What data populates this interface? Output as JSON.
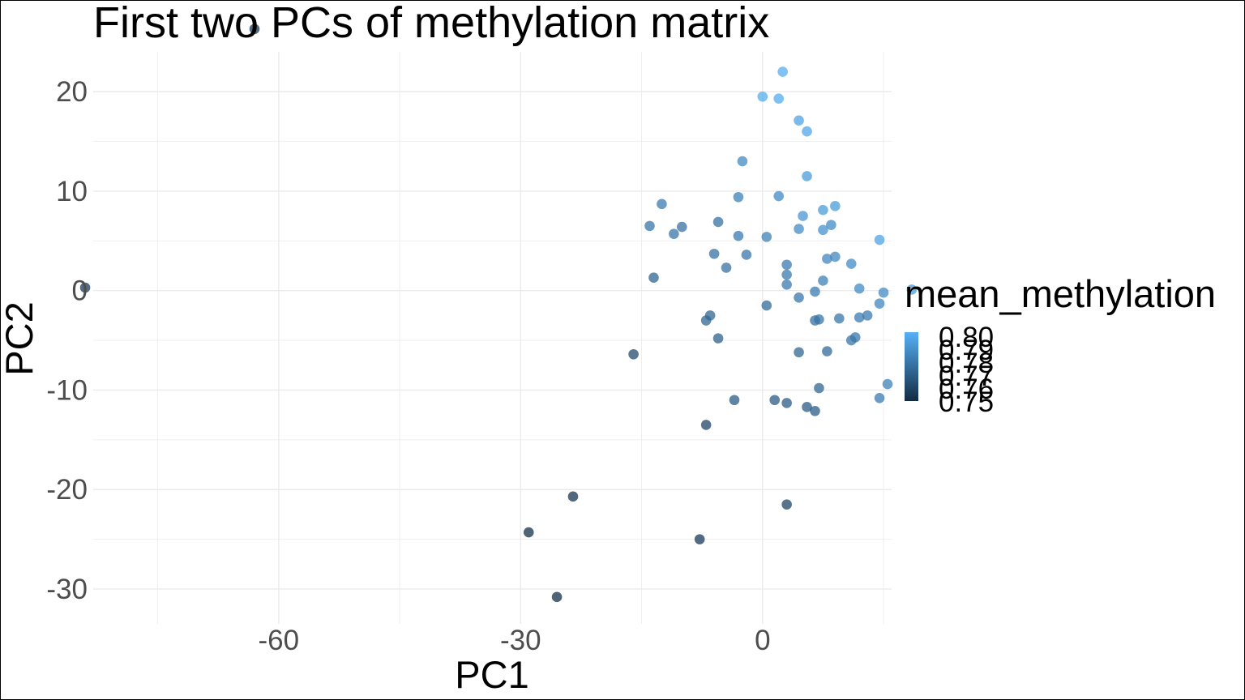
{
  "chart_data": {
    "type": "scatter",
    "title": "First two PCs of methylation matrix",
    "xlabel": "PC1",
    "ylabel": "PC2",
    "xlim": [
      -83,
      16
    ],
    "ylim": [
      -33.5,
      24
    ],
    "x_ticks": [
      -60,
      -30,
      0
    ],
    "y_ticks": [
      -30,
      -20,
      -10,
      0,
      10,
      20
    ],
    "grid": true,
    "legend": {
      "title": "mean_methylation",
      "position": "right",
      "type": "continuous-colorbar",
      "labels": [
        "0.80",
        "0.79",
        "0.78",
        "0.77",
        "0.76",
        "0.75"
      ],
      "range": [
        0.75,
        0.8
      ],
      "low_color": "#132B43",
      "high_color": "#56B1F7"
    },
    "points": [
      {
        "x": -63,
        "y": 26.3,
        "c": 0.755
      },
      {
        "x": -84,
        "y": 0.3,
        "c": 0.755
      },
      {
        "x": -29,
        "y": -24.3,
        "c": 0.752
      },
      {
        "x": -25.5,
        "y": -30.8,
        "c": 0.752
      },
      {
        "x": -23.5,
        "y": -20.7,
        "c": 0.754
      },
      {
        "x": -7.8,
        "y": -25.0,
        "c": 0.756
      },
      {
        "x": 3.0,
        "y": -21.5,
        "c": 0.76
      },
      {
        "x": -7.0,
        "y": -13.5,
        "c": 0.76
      },
      {
        "x": -16.0,
        "y": -6.4,
        "c": 0.762
      },
      {
        "x": 2.5,
        "y": 22.0,
        "c": 0.799
      },
      {
        "x": 0.0,
        "y": 19.5,
        "c": 0.798
      },
      {
        "x": 2.0,
        "y": 19.3,
        "c": 0.798
      },
      {
        "x": 4.5,
        "y": 17.1,
        "c": 0.795
      },
      {
        "x": 5.5,
        "y": 16.0,
        "c": 0.796
      },
      {
        "x": -2.5,
        "y": 13.0,
        "c": 0.785
      },
      {
        "x": 5.5,
        "y": 11.5,
        "c": 0.792
      },
      {
        "x": -12.5,
        "y": 8.7,
        "c": 0.78
      },
      {
        "x": -3.0,
        "y": 9.4,
        "c": 0.782
      },
      {
        "x": 2.0,
        "y": 9.5,
        "c": 0.785
      },
      {
        "x": 9.0,
        "y": 8.5,
        "c": 0.792
      },
      {
        "x": 7.5,
        "y": 8.1,
        "c": 0.792
      },
      {
        "x": 5.0,
        "y": 7.5,
        "c": 0.79
      },
      {
        "x": -14.0,
        "y": 6.5,
        "c": 0.778
      },
      {
        "x": -11.0,
        "y": 5.7,
        "c": 0.778
      },
      {
        "x": -10.0,
        "y": 6.4,
        "c": 0.776
      },
      {
        "x": -5.5,
        "y": 6.9,
        "c": 0.776
      },
      {
        "x": -3.0,
        "y": 5.5,
        "c": 0.78
      },
      {
        "x": 0.5,
        "y": 5.4,
        "c": 0.782
      },
      {
        "x": 4.5,
        "y": 6.2,
        "c": 0.786
      },
      {
        "x": 7.5,
        "y": 6.1,
        "c": 0.788
      },
      {
        "x": 8.5,
        "y": 6.6,
        "c": 0.786
      },
      {
        "x": 14.5,
        "y": 5.1,
        "c": 0.795
      },
      {
        "x": -6.0,
        "y": 3.7,
        "c": 0.776
      },
      {
        "x": -2.0,
        "y": 3.6,
        "c": 0.778
      },
      {
        "x": 8.0,
        "y": 3.2,
        "c": 0.784
      },
      {
        "x": 9.0,
        "y": 3.4,
        "c": 0.784
      },
      {
        "x": 11.0,
        "y": 2.7,
        "c": 0.786
      },
      {
        "x": 3.0,
        "y": 2.6,
        "c": 0.78
      },
      {
        "x": -4.5,
        "y": 2.3,
        "c": 0.776
      },
      {
        "x": 3.0,
        "y": 1.6,
        "c": 0.78
      },
      {
        "x": 7.5,
        "y": 1.0,
        "c": 0.782
      },
      {
        "x": 3.0,
        "y": 0.6,
        "c": 0.78
      },
      {
        "x": -13.5,
        "y": 1.3,
        "c": 0.772
      },
      {
        "x": 12.0,
        "y": 0.2,
        "c": 0.786
      },
      {
        "x": 15.0,
        "y": -0.2,
        "c": 0.786
      },
      {
        "x": 18.5,
        "y": 0.1,
        "c": 0.792
      },
      {
        "x": 6.5,
        "y": -0.1,
        "c": 0.78
      },
      {
        "x": 4.5,
        "y": -0.7,
        "c": 0.778
      },
      {
        "x": 0.5,
        "y": -1.5,
        "c": 0.774
      },
      {
        "x": 14.5,
        "y": -1.3,
        "c": 0.784
      },
      {
        "x": -6.5,
        "y": -2.5,
        "c": 0.772
      },
      {
        "x": -7.0,
        "y": -3.0,
        "c": 0.772
      },
      {
        "x": 7.0,
        "y": -2.9,
        "c": 0.778
      },
      {
        "x": 6.5,
        "y": -3.0,
        "c": 0.776
      },
      {
        "x": 9.5,
        "y": -2.8,
        "c": 0.778
      },
      {
        "x": 12.0,
        "y": -2.7,
        "c": 0.78
      },
      {
        "x": 13.0,
        "y": -2.5,
        "c": 0.78
      },
      {
        "x": -5.5,
        "y": -4.8,
        "c": 0.77
      },
      {
        "x": 11.5,
        "y": -4.7,
        "c": 0.778
      },
      {
        "x": 11.0,
        "y": -5.0,
        "c": 0.778
      },
      {
        "x": 4.5,
        "y": -6.2,
        "c": 0.772
      },
      {
        "x": 8.0,
        "y": -6.1,
        "c": 0.774
      },
      {
        "x": 18.5,
        "y": -8.6,
        "c": 0.784
      },
      {
        "x": 15.5,
        "y": -9.4,
        "c": 0.782
      },
      {
        "x": 14.5,
        "y": -10.8,
        "c": 0.78
      },
      {
        "x": 7.0,
        "y": -9.8,
        "c": 0.772
      },
      {
        "x": -3.5,
        "y": -11.0,
        "c": 0.768
      },
      {
        "x": 1.5,
        "y": -11.0,
        "c": 0.768
      },
      {
        "x": 3.0,
        "y": -11.3,
        "c": 0.768
      },
      {
        "x": 5.5,
        "y": -11.7,
        "c": 0.768
      },
      {
        "x": 6.5,
        "y": -12.1,
        "c": 0.768
      }
    ]
  }
}
